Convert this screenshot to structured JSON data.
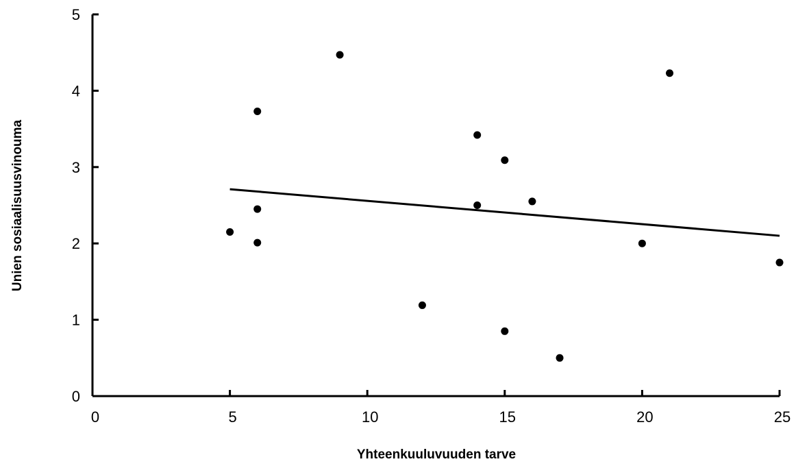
{
  "chart_data": {
    "type": "scatter",
    "title": "",
    "xlabel": "Yhteenkuuluvuuden tarve",
    "ylabel": "Unien sosiaalisuusvinouma",
    "xlim": [
      0,
      25
    ],
    "ylim": [
      0,
      5
    ],
    "xticks": [
      0,
      5,
      10,
      15,
      20,
      25
    ],
    "yticks": [
      0,
      1,
      2,
      3,
      4,
      5
    ],
    "grid": false,
    "legend": "none",
    "series": [
      {
        "points": [
          {
            "x": 5,
            "y": 2.15
          },
          {
            "x": 6,
            "y": 3.73
          },
          {
            "x": 6,
            "y": 2.45
          },
          {
            "x": 6,
            "y": 2.01
          },
          {
            "x": 9,
            "y": 4.47
          },
          {
            "x": 12,
            "y": 1.19
          },
          {
            "x": 14,
            "y": 3.42
          },
          {
            "x": 14,
            "y": 2.5
          },
          {
            "x": 15,
            "y": 3.09
          },
          {
            "x": 15,
            "y": 0.85
          },
          {
            "x": 16,
            "y": 2.55
          },
          {
            "x": 17,
            "y": 0.5
          },
          {
            "x": 20,
            "y": 2.0
          },
          {
            "x": 21,
            "y": 4.23
          },
          {
            "x": 25,
            "y": 1.75
          }
        ]
      }
    ],
    "trendline": {
      "x": [
        5,
        25
      ],
      "y": [
        2.71,
        2.1
      ]
    },
    "colors": {
      "marker": "#000000",
      "line": "#000000",
      "axis": "#000000"
    }
  }
}
